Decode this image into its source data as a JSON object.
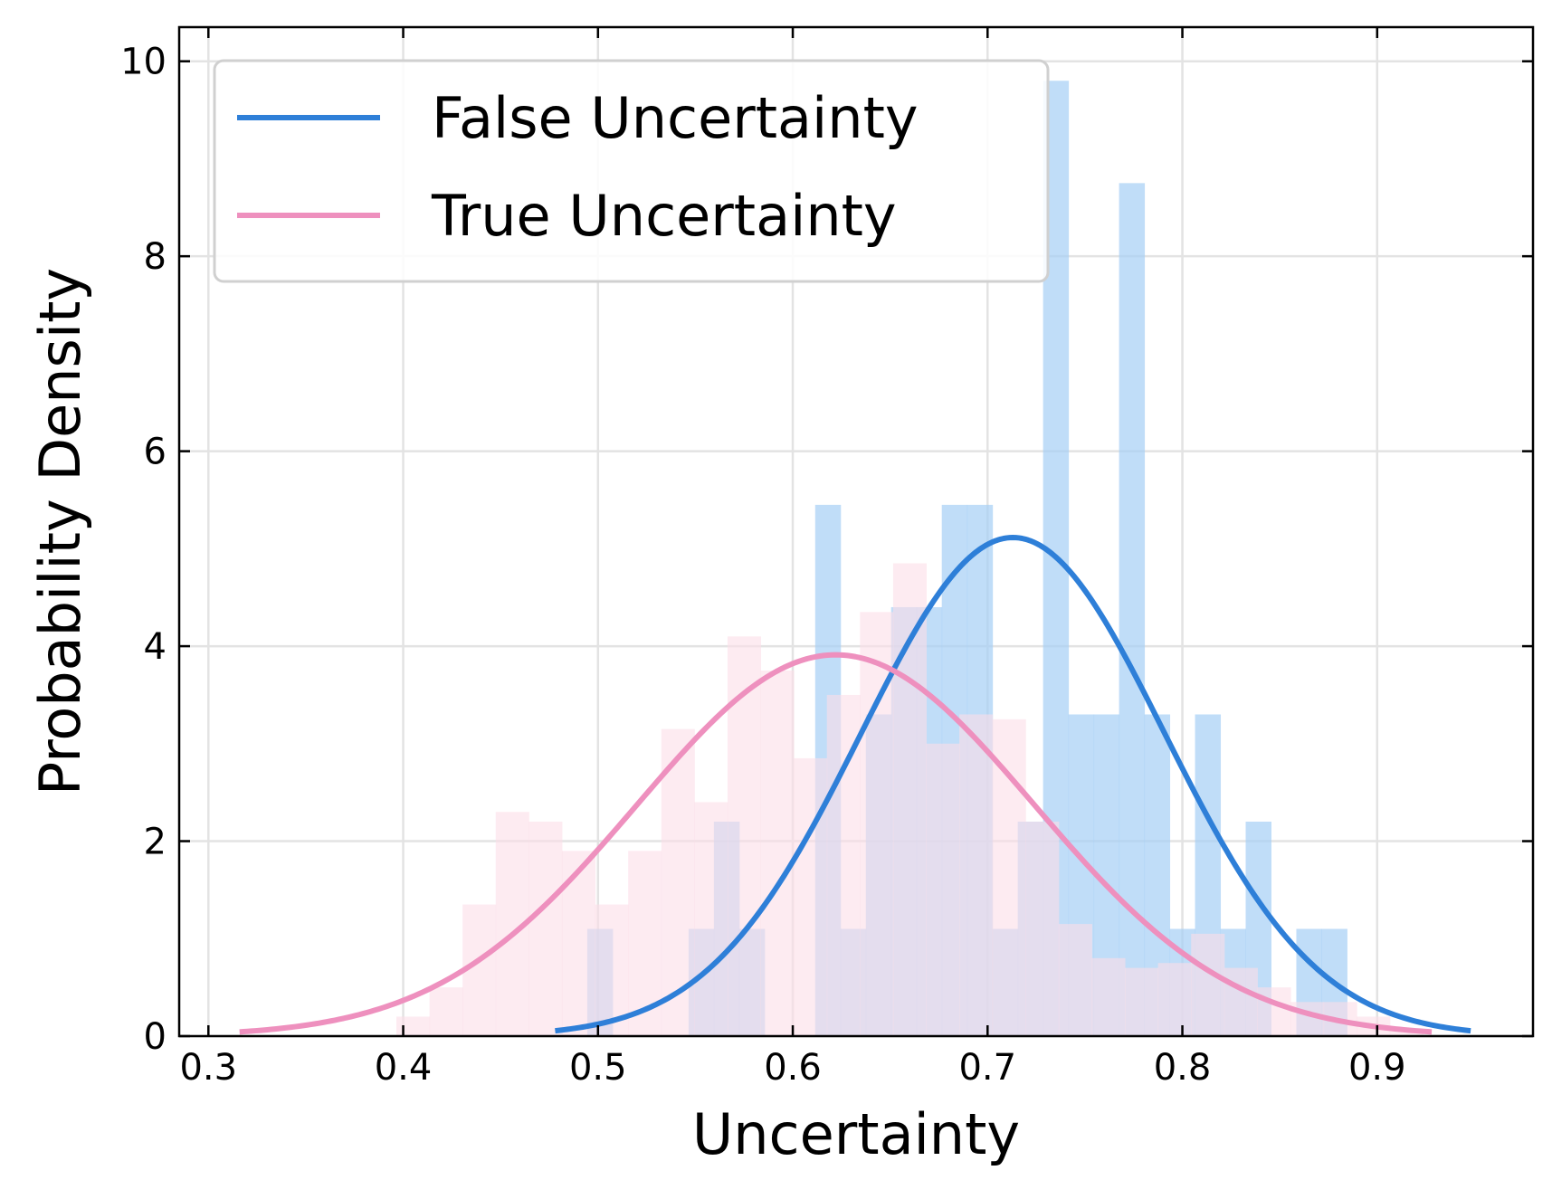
{
  "chart_data": {
    "type": "histogram",
    "title": "",
    "xlabel": "Uncertainty",
    "ylabel": "Probability Density",
    "xlim": [
      0.285,
      0.98
    ],
    "ylim": [
      0,
      10.35
    ],
    "xticks": [
      0.3,
      0.4,
      0.5,
      0.6,
      0.7,
      0.8,
      0.9
    ],
    "xtick_labels": [
      "0.3",
      "0.4",
      "0.5",
      "0.6",
      "0.7",
      "0.8",
      "0.9"
    ],
    "yticks": [
      0,
      2,
      4,
      6,
      8,
      10
    ],
    "ytick_labels": [
      "0",
      "2",
      "4",
      "6",
      "8",
      "10"
    ],
    "grid": true,
    "legend_position": "top-left",
    "series": [
      {
        "name": "False Uncertainty",
        "line_color": "#2e7fd8",
        "hist_color": "#a8d0f5",
        "fit": {
          "mean": 0.713,
          "std": 0.078
        },
        "fit_range": [
          0.478,
          0.948
        ],
        "bin_edges": [
          0.4815,
          0.4945,
          0.5075,
          0.5205,
          0.5335,
          0.5465,
          0.5595,
          0.5725,
          0.5855,
          0.5985,
          0.6115,
          0.6245,
          0.6375,
          0.6505,
          0.6635,
          0.6765,
          0.6895,
          0.7025,
          0.7155,
          0.7285,
          0.7415,
          0.7545,
          0.7675,
          0.7805,
          0.7935,
          0.8065,
          0.8195,
          0.8325,
          0.8455,
          0.8585,
          0.8715,
          0.8845
        ],
        "values": [
          0,
          1.1,
          0,
          0,
          0,
          1.1,
          2.2,
          1.1,
          0,
          0,
          5.45,
          1.1,
          3.3,
          4.4,
          4.4,
          5.45,
          5.45,
          1.1,
          2.2,
          9.8,
          3.3,
          3.3,
          8.75,
          3.3,
          1.1,
          3.3,
          1.1,
          2.2,
          0,
          1.1,
          1.1
        ]
      },
      {
        "name": "True Uncertainty",
        "line_color": "#ee90be",
        "hist_color": "#fcdde8",
        "fit": {
          "mean": 0.622,
          "std": 0.102
        },
        "fit_range": [
          0.316,
          0.928
        ],
        "bin_edges": [
          0.3965,
          0.4135,
          0.4305,
          0.4475,
          0.4645,
          0.4815,
          0.4985,
          0.5155,
          0.5325,
          0.5495,
          0.5665,
          0.5835,
          0.6005,
          0.6175,
          0.6345,
          0.6515,
          0.6685,
          0.6855,
          0.7025,
          0.7195,
          0.7365,
          0.7535,
          0.7705,
          0.7875,
          0.8045,
          0.8215,
          0.8385,
          0.8555,
          0.8725,
          0.8895,
          0.9065,
          0.9235
        ],
        "values": [
          0.2,
          0.5,
          1.35,
          2.3,
          2.2,
          1.9,
          1.35,
          1.9,
          3.15,
          2.4,
          4.1,
          3.75,
          2.85,
          3.5,
          4.35,
          4.85,
          3.0,
          3.3,
          3.25,
          2.2,
          1.15,
          0.8,
          0.7,
          0.75,
          1.05,
          0.7,
          0.5,
          0.35,
          0.35,
          0.2,
          0.05
        ]
      }
    ]
  }
}
